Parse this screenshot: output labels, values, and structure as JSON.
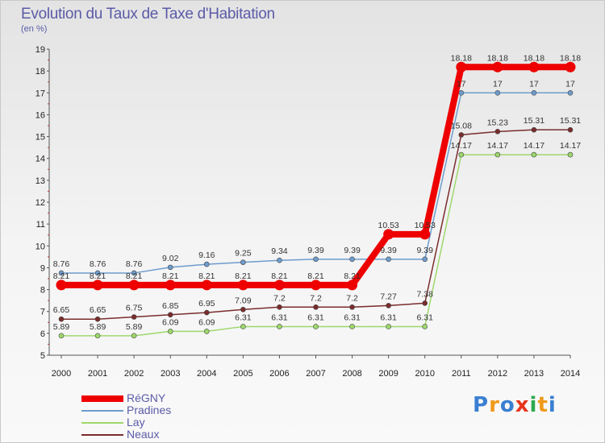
{
  "title": "Evolution du Taux de Taxe d'Habitation",
  "unit_label": "(en %)",
  "brand": "Proxiti",
  "brand_colors": [
    "#3a7fd1",
    "#f09a1a",
    "#3a7fd1",
    "#e8341c",
    "#2ea84f",
    "#f09a1a",
    "#3a7fd1"
  ],
  "chart_data": {
    "type": "line",
    "title": "Evolution du Taux de Taxe d'Habitation",
    "ylabel": "(en %)",
    "xlabel": "",
    "x": [
      2000,
      2001,
      2002,
      2003,
      2004,
      2005,
      2006,
      2007,
      2008,
      2009,
      2010,
      2011,
      2012,
      2013,
      2014
    ],
    "ylim": [
      5,
      19
    ],
    "yticks": [
      5,
      6,
      7,
      8,
      9,
      10,
      11,
      12,
      13,
      14,
      15,
      16,
      17,
      18,
      19
    ],
    "grid": false,
    "legend_position": "bottom-left",
    "series": [
      {
        "name": "RéGNY",
        "color": "#ee0000",
        "values": [
          8.21,
          8.21,
          8.21,
          8.21,
          8.21,
          8.21,
          8.21,
          8.21,
          8.21,
          10.53,
          10.53,
          18.18,
          18.18,
          18.18,
          18.18
        ],
        "labels": [
          "8.21",
          "8.21",
          "8.21",
          "8.21",
          "8.21",
          "8.21",
          "8.21",
          "8.21",
          "8.21",
          "10.53",
          "10.53",
          "18.18",
          "18.18",
          "18.18",
          "18.18"
        ]
      },
      {
        "name": "Pradines",
        "color": "#6e9ccd",
        "values": [
          8.76,
          8.76,
          8.76,
          9.02,
          9.16,
          9.25,
          9.34,
          9.39,
          9.39,
          9.39,
          9.39,
          17,
          17,
          17,
          17
        ],
        "labels": [
          "8.76",
          "8.76",
          "8.76",
          "9.02",
          "9.16",
          "9.25",
          "9.34",
          "9.39",
          "9.39",
          "9.39",
          "9.39",
          "17",
          "17",
          "17",
          "17"
        ]
      },
      {
        "name": "Lay",
        "color": "#9ed86c",
        "values": [
          5.89,
          5.89,
          5.89,
          6.09,
          6.09,
          6.31,
          6.31,
          6.31,
          6.31,
          6.31,
          6.31,
          14.17,
          14.17,
          14.17,
          14.17
        ],
        "labels": [
          "5.89",
          "5.89",
          "5.89",
          "6.09",
          "6.09",
          "6.31",
          "6.31",
          "6.31",
          "6.31",
          "6.31",
          "6.31",
          "14.17",
          "14.17",
          "14.17",
          "14.17"
        ]
      },
      {
        "name": "Neaux",
        "color": "#7a2c2c",
        "values": [
          6.65,
          6.65,
          6.75,
          6.85,
          6.95,
          7.09,
          7.2,
          7.2,
          7.2,
          7.27,
          7.38,
          15.08,
          15.23,
          15.31,
          15.31
        ],
        "labels": [
          "6.65",
          "6.65",
          "6.75",
          "6.85",
          "6.95",
          "7.09",
          "7.2",
          "7.2",
          "7.2",
          "7.27",
          "7.38",
          "15.08",
          "15.23",
          "15.31",
          "15.31"
        ]
      }
    ]
  }
}
